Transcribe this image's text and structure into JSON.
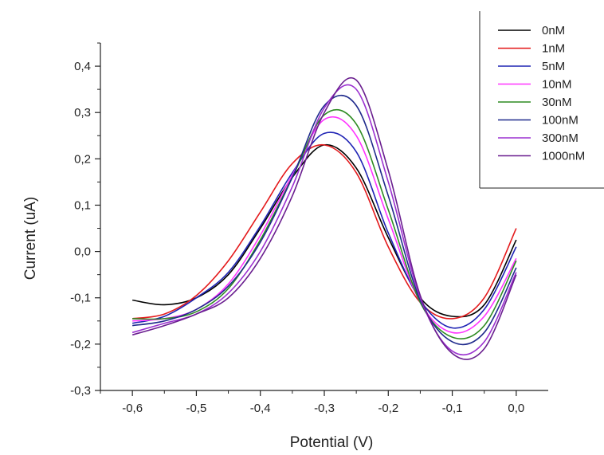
{
  "chart_data": {
    "type": "line",
    "title": "",
    "xlabel": "Potential (V)",
    "ylabel": "Current (uA)",
    "xlim": [
      -0.65,
      0.05
    ],
    "ylim": [
      -0.3,
      0.45
    ],
    "xticks": [
      -0.6,
      -0.5,
      -0.4,
      -0.3,
      -0.2,
      -0.1,
      0.0
    ],
    "yticks": [
      -0.3,
      -0.2,
      -0.1,
      0.0,
      0.1,
      0.2,
      0.3,
      0.4
    ],
    "xtick_labels": [
      "-0,6",
      "-0,5",
      "-0,4",
      "-0,3",
      "-0,2",
      "-0,1",
      "0,0"
    ],
    "ytick_labels": [
      "-0,3",
      "-0,2",
      "-0,1",
      "0,0",
      "0,1",
      "0,2",
      "0,3",
      "0,4"
    ],
    "grid": false,
    "legend_position": "top-right",
    "series": [
      {
        "name": "0nM",
        "color": "#000000",
        "x": [
          -0.6,
          -0.55,
          -0.5,
          -0.45,
          -0.4,
          -0.35,
          -0.3,
          -0.25,
          -0.2,
          -0.15,
          -0.1,
          -0.05,
          0.0
        ],
        "y": [
          -0.105,
          -0.115,
          -0.1,
          -0.05,
          0.05,
          0.16,
          0.23,
          0.18,
          0.03,
          -0.1,
          -0.14,
          -0.115,
          0.025
        ]
      },
      {
        "name": "1nM",
        "color": "#e41a1c",
        "x": [
          -0.6,
          -0.55,
          -0.5,
          -0.45,
          -0.4,
          -0.35,
          -0.3,
          -0.25,
          -0.2,
          -0.15,
          -0.1,
          -0.05,
          0.0
        ],
        "y": [
          -0.145,
          -0.135,
          -0.095,
          -0.02,
          0.085,
          0.19,
          0.23,
          0.17,
          0.01,
          -0.11,
          -0.145,
          -0.1,
          0.05
        ]
      },
      {
        "name": "5nM",
        "color": "#1f23b4",
        "x": [
          -0.6,
          -0.55,
          -0.5,
          -0.45,
          -0.4,
          -0.35,
          -0.3,
          -0.25,
          -0.2,
          -0.15,
          -0.1,
          -0.05,
          0.0
        ],
        "y": [
          -0.155,
          -0.14,
          -0.1,
          -0.045,
          0.055,
          0.17,
          0.255,
          0.215,
          0.04,
          -0.105,
          -0.165,
          -0.125,
          0.01
        ]
      },
      {
        "name": "10nM",
        "color": "#ff33ff",
        "x": [
          -0.6,
          -0.55,
          -0.5,
          -0.45,
          -0.4,
          -0.35,
          -0.3,
          -0.25,
          -0.2,
          -0.15,
          -0.1,
          -0.05,
          0.0
        ],
        "y": [
          -0.15,
          -0.145,
          -0.125,
          -0.07,
          0.035,
          0.165,
          0.285,
          0.25,
          0.07,
          -0.11,
          -0.175,
          -0.14,
          -0.015
        ]
      },
      {
        "name": "30nM",
        "color": "#2e8b22",
        "x": [
          -0.6,
          -0.55,
          -0.5,
          -0.45,
          -0.4,
          -0.35,
          -0.3,
          -0.25,
          -0.2,
          -0.15,
          -0.1,
          -0.05,
          0.0
        ],
        "y": [
          -0.145,
          -0.145,
          -0.13,
          -0.08,
          0.025,
          0.16,
          0.295,
          0.275,
          0.09,
          -0.11,
          -0.185,
          -0.16,
          -0.02
        ]
      },
      {
        "name": "100nM",
        "color": "#1f2a8c",
        "x": [
          -0.6,
          -0.55,
          -0.5,
          -0.45,
          -0.4,
          -0.35,
          -0.3,
          -0.25,
          -0.2,
          -0.15,
          -0.1,
          -0.05,
          0.0
        ],
        "y": [
          -0.16,
          -0.15,
          -0.125,
          -0.075,
          0.02,
          0.16,
          0.315,
          0.315,
          0.12,
          -0.105,
          -0.195,
          -0.175,
          -0.035
        ]
      },
      {
        "name": "300nM",
        "color": "#9b30d0",
        "x": [
          -0.6,
          -0.55,
          -0.5,
          -0.45,
          -0.4,
          -0.35,
          -0.3,
          -0.25,
          -0.2,
          -0.15,
          -0.1,
          -0.05,
          0.0
        ],
        "y": [
          -0.175,
          -0.155,
          -0.135,
          -0.09,
          0.0,
          0.14,
          0.31,
          0.35,
          0.15,
          -0.1,
          -0.215,
          -0.195,
          -0.045
        ]
      },
      {
        "name": "1000nM",
        "color": "#6a1f8f",
        "x": [
          -0.6,
          -0.55,
          -0.5,
          -0.45,
          -0.4,
          -0.35,
          -0.3,
          -0.25,
          -0.2,
          -0.15,
          -0.1,
          -0.05,
          0.0
        ],
        "y": [
          -0.18,
          -0.16,
          -0.135,
          -0.1,
          -0.015,
          0.12,
          0.3,
          0.37,
          0.175,
          -0.095,
          -0.22,
          -0.21,
          -0.05
        ]
      }
    ]
  }
}
